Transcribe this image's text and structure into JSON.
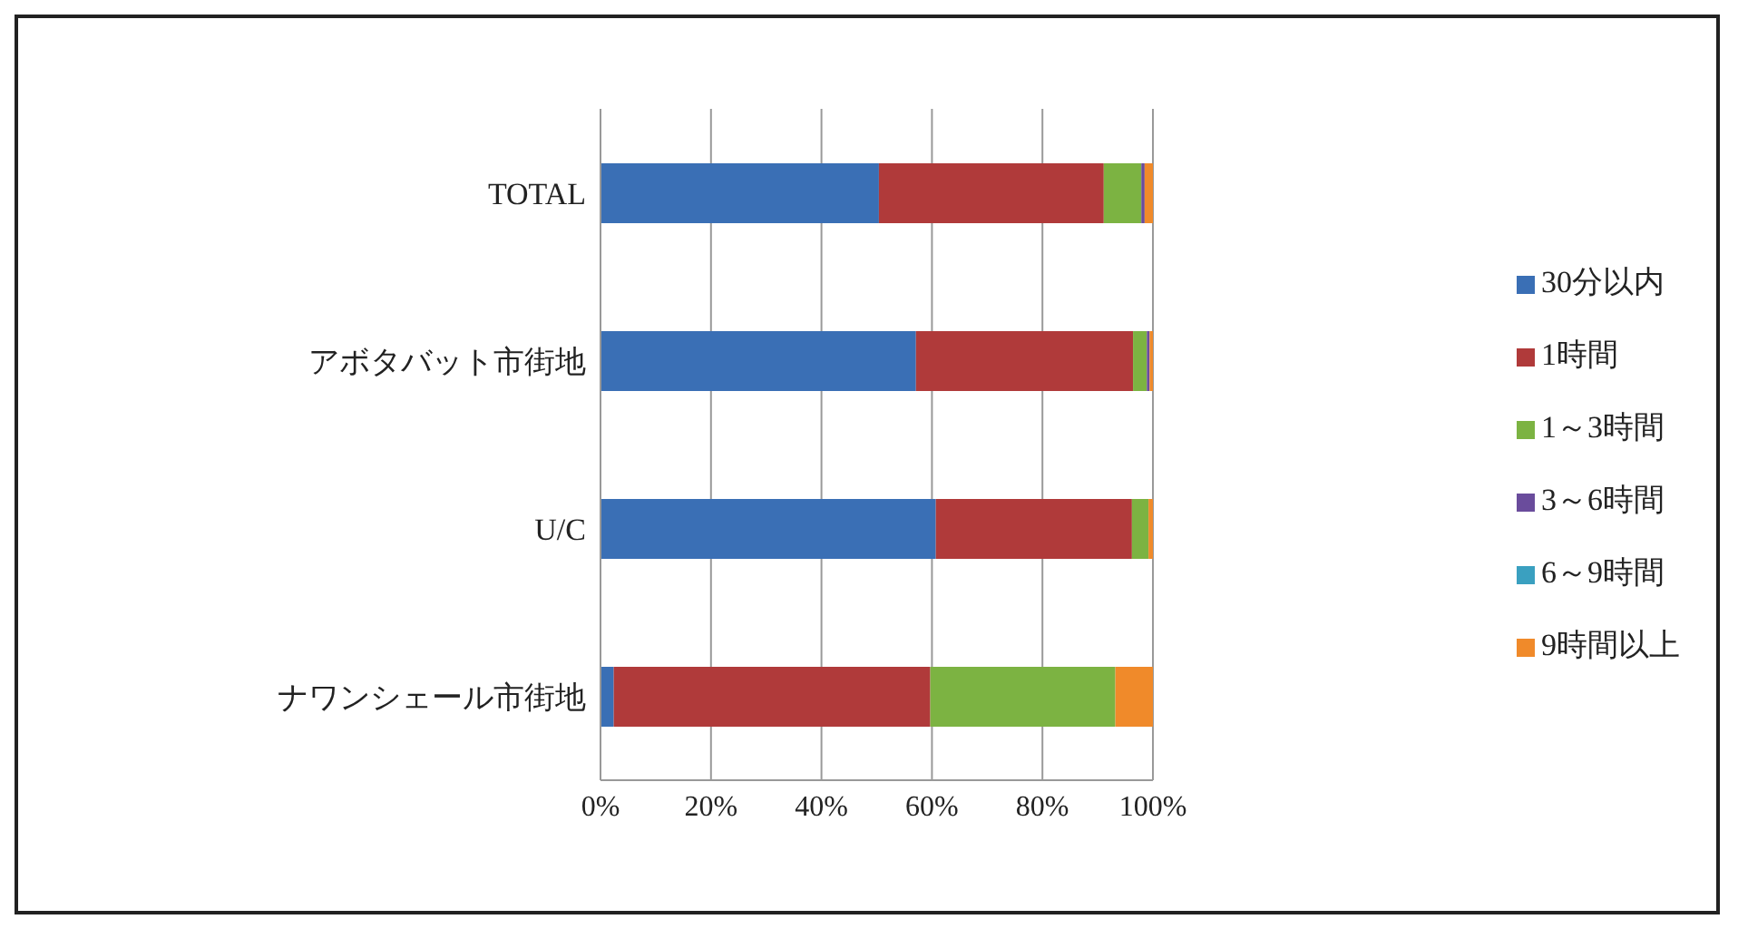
{
  "chart_data": {
    "type": "bar",
    "orientation": "horizontal",
    "stacked": true,
    "categories": [
      "TOTAL",
      "アボタバット市街地",
      "U/C",
      "ナワンシェール市街地"
    ],
    "series": [
      {
        "name": "30分以内",
        "color": "#3a6fb5",
        "values": [
          50.4,
          57.1,
          60.7,
          2.4
        ]
      },
      {
        "name": "1時間",
        "color": "#b03a3a",
        "values": [
          40.7,
          39.3,
          35.5,
          57.3
        ]
      },
      {
        "name": "1～3時間",
        "color": "#7cb342",
        "values": [
          6.8,
          2.5,
          3.0,
          33.5
        ]
      },
      {
        "name": "3～6時間",
        "color": "#6a4c9c",
        "values": [
          0.6,
          0.5,
          0,
          0
        ]
      },
      {
        "name": "6～9時間",
        "color": "#3aa0c0",
        "values": [
          0,
          0,
          0,
          0
        ]
      },
      {
        "name": "9時間以上",
        "color": "#f08a2a",
        "values": [
          1.5,
          0.6,
          0.8,
          6.8
        ]
      }
    ],
    "xlim": [
      0,
      100
    ],
    "xticks": [
      {
        "value": 0,
        "label": "0%"
      },
      {
        "value": 20,
        "label": "20%"
      },
      {
        "value": 40,
        "label": "40%"
      },
      {
        "value": 60,
        "label": "60%"
      },
      {
        "value": 80,
        "label": "80%"
      },
      {
        "value": 100,
        "label": "100%"
      }
    ],
    "grid": "x",
    "legend": "right"
  }
}
